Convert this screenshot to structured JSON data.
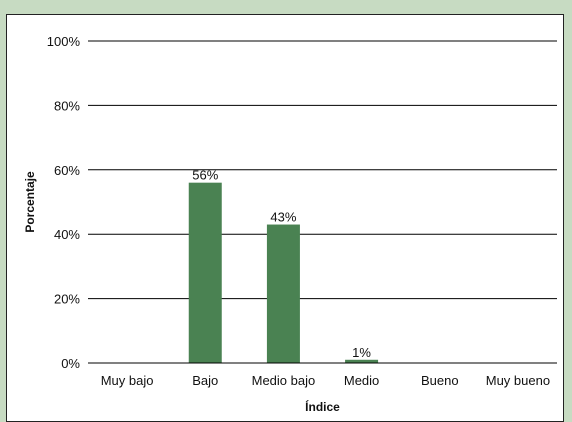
{
  "chart_data": {
    "type": "bar",
    "categories": [
      "Muy bajo",
      "Bajo",
      "Medio bajo",
      "Medio",
      "Bueno",
      "Muy bueno"
    ],
    "values": [
      0,
      56,
      43,
      1,
      0,
      0
    ],
    "data_labels": [
      "",
      "56%",
      "43%",
      "1%",
      "",
      ""
    ],
    "xlabel": "Índice",
    "ylabel": "Porcentaje",
    "ylim": [
      0,
      100
    ],
    "yticks": [
      0,
      20,
      40,
      60,
      80,
      100
    ],
    "ytick_labels": [
      "0%",
      "20%",
      "40%",
      "60%",
      "80%",
      "100%"
    ],
    "grid": true,
    "legend": "none",
    "colors": {
      "bar": "#4a8252",
      "background": "#c7dbc2",
      "plot_area": "#ffffff"
    }
  }
}
